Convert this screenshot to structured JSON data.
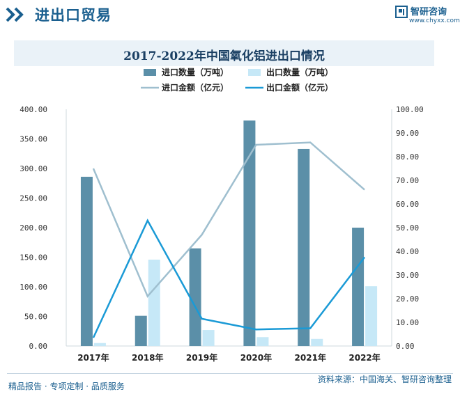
{
  "header": {
    "title": "进出口贸易",
    "brand_name": "智研咨询",
    "brand_url": "www.chyxx.com"
  },
  "footer": {
    "left_text": "精品报告 · 专项定制 · 品质服务",
    "source": "资料来源：中国海关、智研咨询整理"
  },
  "colors": {
    "import_qty": "#5b8fa8",
    "export_qty": "#c6e8f7",
    "import_amt": "#9fbfcf",
    "export_amt": "#1a9ad6",
    "brand": "#1a5f8f"
  },
  "chart_data": {
    "type": "bar",
    "title": "2017-2022年中国氧化铝进出口情况",
    "categories": [
      "2017年",
      "2018年",
      "2019年",
      "2020年",
      "2021年",
      "2022年"
    ],
    "series": [
      {
        "name": "进口数量（万吨）",
        "type": "bar",
        "axis": "left",
        "values": [
          286,
          51,
          165,
          381,
          333,
          200
        ]
      },
      {
        "name": "出口数量（万吨）",
        "type": "bar",
        "axis": "left",
        "values": [
          5,
          146,
          27,
          15,
          12,
          101
        ]
      },
      {
        "name": "进口金额（亿元）",
        "type": "line",
        "axis": "right",
        "values": [
          75,
          21,
          47,
          85,
          86,
          66
        ]
      },
      {
        "name": "出口金额（亿元）",
        "type": "line",
        "axis": "right",
        "values": [
          3.5,
          53,
          11.5,
          7,
          7.5,
          37.5
        ]
      }
    ],
    "y_left": {
      "min": 0,
      "max": 400,
      "ticks": [
        "0.00",
        "50.00",
        "100.00",
        "150.00",
        "200.00",
        "250.00",
        "300.00",
        "350.00",
        "400.00"
      ]
    },
    "y_right": {
      "min": 0,
      "max": 100,
      "ticks": [
        "0.00",
        "10.00",
        "20.00",
        "30.00",
        "40.00",
        "50.00",
        "60.00",
        "70.00",
        "80.00",
        "90.00",
        "100.00"
      ]
    },
    "legend_position": "top-center",
    "grid": false
  }
}
